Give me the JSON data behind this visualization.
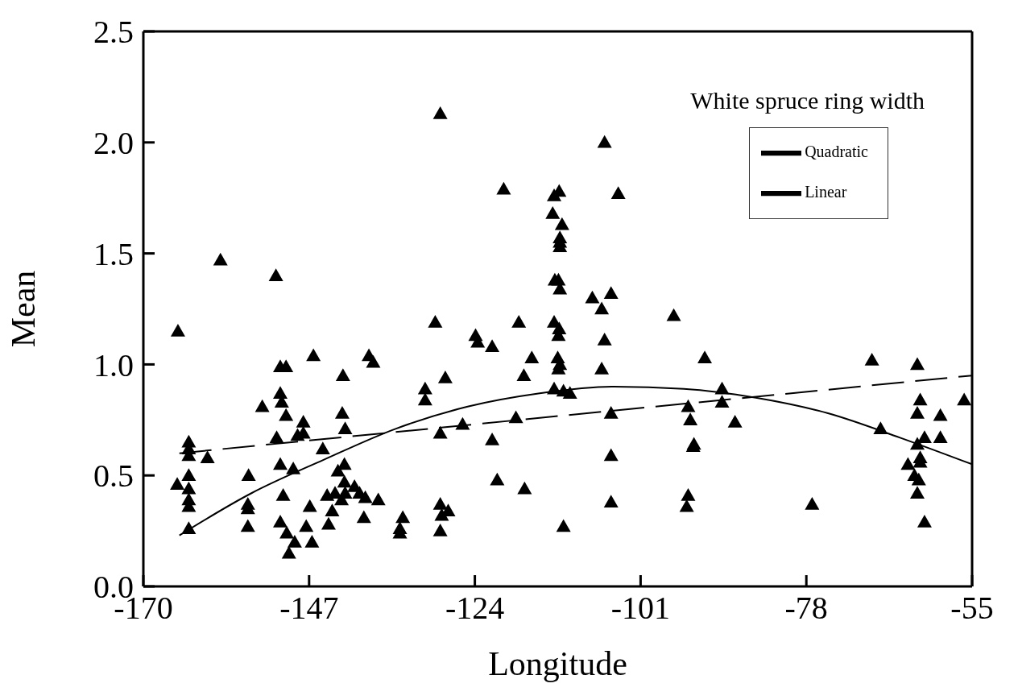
{
  "chart_data": {
    "type": "scatter",
    "title": "White spruce ring width",
    "xlabel": "Longitude",
    "ylabel": "Mean",
    "xlim": [
      -170,
      -55
    ],
    "xticks": [
      -170,
      -147,
      -124,
      -101,
      -78,
      -55
    ],
    "ylim": [
      0,
      2.5
    ],
    "yticks": [
      {
        "value": 0,
        "label": "0.0"
      },
      {
        "value": 0.5,
        "label": "0.5"
      },
      {
        "value": 1,
        "label": "1.0"
      },
      {
        "value": 1.5,
        "label": "1.5"
      },
      {
        "value": 2,
        "label": "2.0"
      },
      {
        "value": 2.5,
        "label": "2.5"
      }
    ],
    "grid": false,
    "legend": "top right",
    "series": [
      {
        "color": "#000000",
        "marker": "triangle",
        "x": [
          -165.2,
          -165.3,
          -163.7,
          -163.7,
          -163.7,
          -163.7,
          -163.7,
          -163.7,
          -163.7,
          -163.7,
          -161.1,
          -159.3,
          -153.5,
          -155.4,
          -155.5,
          -155.5,
          -155.5,
          -151.6,
          -151,
          -150.2,
          -151,
          -150.8,
          -150.2,
          -151.5,
          -151,
          -150.6,
          -151,
          -150.1,
          -149.8,
          -149,
          -149.2,
          -148.6,
          -147.8,
          -147.8,
          -146.9,
          -147.4,
          -146.6,
          -146.4,
          -145.1,
          -144.5,
          -144.3,
          -143.8,
          -143.4,
          -143,
          -142.3,
          -142.4,
          -142,
          -142.1,
          -142.1,
          -142,
          -142.5,
          -140.7,
          -140,
          -139.4,
          -139.2,
          -138.7,
          -138.1,
          -137.4,
          -134.4,
          -134,
          -134.4,
          -130.9,
          -130.9,
          -129.5,
          -128.8,
          -128.8,
          -128.8,
          -128.8,
          -128.6,
          -127.7,
          -128.1,
          -125.7,
          -123.9,
          -123.6,
          -121.6,
          -121.6,
          -120.9,
          -120,
          -117.9,
          -117.2,
          -118.3,
          -117.1,
          -116.1,
          -113,
          -112.3,
          -113.2,
          -111.9,
          -112.2,
          -112.2,
          -112.2,
          -112.9,
          -112.4,
          -112.2,
          -113,
          -112.3,
          -112.4,
          -112.5,
          -112.2,
          -112.4,
          -113,
          -111.7,
          -111.7,
          -110.8,
          -106,
          -105.1,
          -106.4,
          -107.7,
          -104.1,
          -106,
          -106.4,
          -105.1,
          -105.1,
          -105.1,
          -96.4,
          -92.1,
          -94.4,
          -94.1,
          -93.6,
          -93.7,
          -94.4,
          -94.6,
          -89.7,
          -89.7,
          -87.9,
          -77.2,
          -68.9,
          -67.7,
          -62.6,
          -62.2,
          -62.6,
          -61.6,
          -62.6,
          -62.2,
          -62.2,
          -63.9,
          -63,
          -62.4,
          -62.6,
          -61.6,
          -59.4,
          -59.4,
          -56.1
        ],
        "values": [
          1.15,
          0.46,
          0.65,
          0.62,
          0.59,
          0.5,
          0.44,
          0.39,
          0.36,
          0.26,
          0.58,
          1.47,
          0.81,
          0.5,
          0.37,
          0.35,
          0.27,
          1.4,
          0.99,
          0.99,
          0.87,
          0.83,
          0.77,
          0.67,
          0.55,
          0.41,
          0.29,
          0.24,
          0.15,
          0.2,
          0.53,
          0.68,
          0.74,
          0.69,
          0.36,
          0.27,
          0.2,
          1.04,
          0.62,
          0.41,
          0.28,
          0.34,
          0.42,
          0.52,
          0.95,
          0.78,
          0.71,
          0.55,
          0.47,
          0.42,
          0.39,
          0.45,
          0.42,
          0.31,
          0.4,
          1.04,
          1.01,
          0.39,
          0.26,
          0.31,
          0.24,
          0.89,
          0.84,
          1.19,
          2.13,
          0.69,
          0.25,
          0.37,
          0.32,
          0.34,
          0.94,
          0.73,
          1.13,
          1.1,
          1.08,
          0.66,
          0.48,
          1.79,
          1.19,
          0.95,
          0.76,
          0.44,
          1.03,
          1.76,
          1.78,
          1.68,
          1.63,
          1.57,
          1.55,
          1.53,
          1.38,
          1.38,
          1.34,
          1.19,
          1.16,
          1.13,
          1.03,
          1.0,
          0.98,
          0.89,
          0.88,
          0.27,
          0.87,
          2.0,
          1.32,
          1.25,
          1.3,
          1.77,
          1.11,
          0.98,
          0.78,
          0.59,
          0.38,
          1.22,
          1.03,
          0.81,
          0.75,
          0.64,
          0.63,
          0.41,
          0.36,
          0.89,
          0.83,
          0.74,
          0.37,
          1.02,
          0.71,
          1.0,
          0.84,
          0.78,
          0.67,
          0.64,
          0.58,
          0.56,
          0.55,
          0.5,
          0.48,
          0.42,
          0.29,
          0.77,
          0.67,
          0.84
        ]
      },
      {
        "type": "line",
        "name": "Quadratic",
        "color": "#000000",
        "line_style": "solid",
        "marker": "none",
        "x": [
          -165,
          -155,
          -145,
          -135,
          -125,
          -115,
          -105,
          -95,
          -85,
          -75,
          -65,
          -55
        ],
        "values": [
          0.23,
          0.42,
          0.57,
          0.71,
          0.81,
          0.87,
          0.9,
          0.89,
          0.85,
          0.78,
          0.67,
          0.55
        ]
      },
      {
        "type": "line",
        "name": "Linear",
        "color": "#000000",
        "line_style": "dashed",
        "marker": "none",
        "x": [
          -165,
          -55
        ],
        "values": [
          0.6,
          0.95
        ]
      }
    ]
  }
}
